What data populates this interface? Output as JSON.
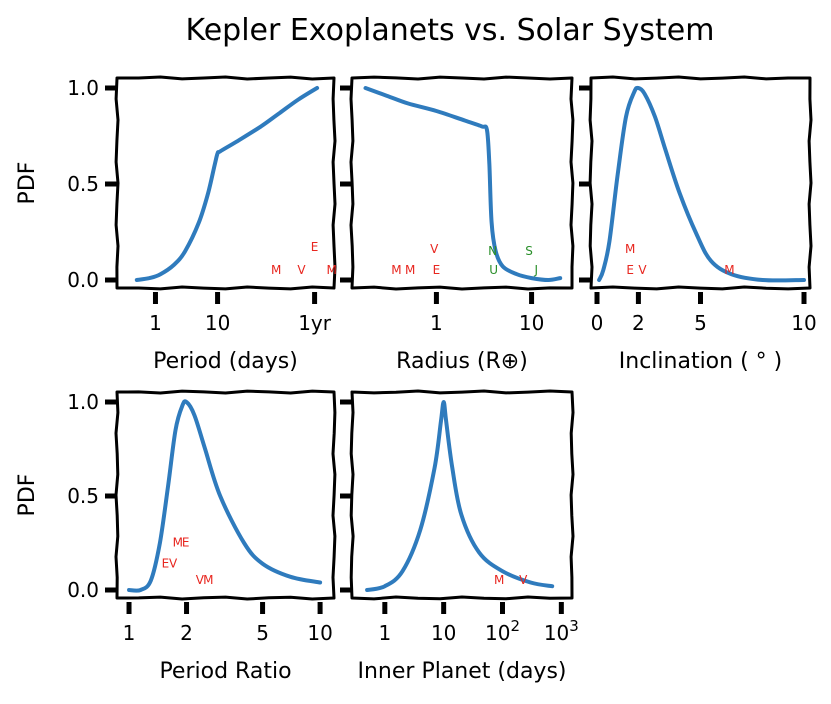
{
  "figure": {
    "title": "Kepler Exoplanets vs. Solar System"
  },
  "colors": {
    "curve": "#2f7bbd",
    "terrestrial": "#e8261f",
    "giant": "#2a8f2a"
  },
  "chart_data": [
    {
      "id": "period",
      "type": "line",
      "xlabel": "Period (days)",
      "ylabel": "PDF",
      "xscale": "log",
      "xlim": [
        0.3,
        600
      ],
      "ylim": [
        0,
        1.0
      ],
      "xticks": [
        {
          "v": 1,
          "label": "1"
        },
        {
          "v": 10,
          "label": "10"
        },
        {
          "v": 365,
          "label": "1yr"
        }
      ],
      "yticks": [
        {
          "v": 0.0,
          "label": "0.0"
        },
        {
          "v": 0.5,
          "label": "0.5"
        },
        {
          "v": 1.0,
          "label": "1.0"
        }
      ],
      "x": [
        0.5,
        0.8,
        1.2,
        2,
        3,
        5,
        7,
        9,
        10,
        11,
        20,
        50,
        100,
        200,
        400
      ],
      "y": [
        0.0,
        0.01,
        0.03,
        0.08,
        0.15,
        0.3,
        0.45,
        0.6,
        0.66,
        0.67,
        0.72,
        0.8,
        0.87,
        0.94,
        1.0
      ],
      "markers": [
        {
          "label": "M",
          "x": 88,
          "y": 0.02,
          "group": "terrestrial"
        },
        {
          "label": "V",
          "x": 225,
          "y": 0.02,
          "group": "terrestrial"
        },
        {
          "label": "E",
          "x": 365,
          "y": 0.14,
          "group": "terrestrial"
        },
        {
          "label": "M",
          "x": 687,
          "y": 0.02,
          "group": "terrestrial"
        }
      ]
    },
    {
      "id": "radius",
      "type": "line",
      "xlabel": "Radius (R⊕)",
      "ylabel": "",
      "xscale": "log",
      "xlim": [
        0.15,
        23
      ],
      "ylim": [
        0,
        1.0
      ],
      "xticks": [
        {
          "v": 1,
          "label": "1"
        },
        {
          "v": 10,
          "label": "10"
        }
      ],
      "yticks": [
        {
          "v": 0.0,
          "label": ""
        },
        {
          "v": 0.5,
          "label": ""
        },
        {
          "v": 1.0,
          "label": ""
        }
      ],
      "x": [
        0.18,
        0.3,
        0.5,
        1,
        2,
        3,
        3.4,
        3.6,
        3.8,
        4.2,
        5,
        7,
        10,
        15,
        20
      ],
      "y": [
        1.0,
        0.96,
        0.92,
        0.88,
        0.83,
        0.8,
        0.78,
        0.6,
        0.3,
        0.15,
        0.07,
        0.03,
        0.01,
        0.0,
        0.01
      ],
      "markers": [
        {
          "label": "M",
          "x": 0.38,
          "y": 0.02,
          "group": "terrestrial"
        },
        {
          "label": "M",
          "x": 0.53,
          "y": 0.02,
          "group": "terrestrial"
        },
        {
          "label": "V",
          "x": 0.95,
          "y": 0.13,
          "group": "terrestrial"
        },
        {
          "label": "E",
          "x": 1.0,
          "y": 0.02,
          "group": "terrestrial"
        },
        {
          "label": "N",
          "x": 3.9,
          "y": 0.12,
          "group": "giant"
        },
        {
          "label": "U",
          "x": 4.0,
          "y": 0.02,
          "group": "giant"
        },
        {
          "label": "S",
          "x": 9.4,
          "y": 0.12,
          "group": "giant"
        },
        {
          "label": "J",
          "x": 11.2,
          "y": 0.02,
          "group": "giant"
        }
      ]
    },
    {
      "id": "inclination",
      "type": "line",
      "xlabel": "Inclination ( ° )",
      "ylabel": "",
      "xscale": "linear",
      "xlim": [
        0,
        10
      ],
      "ylim": [
        0,
        1.0
      ],
      "xticks": [
        {
          "v": 0,
          "label": "0"
        },
        {
          "v": 2,
          "label": "2"
        },
        {
          "v": 5,
          "label": "5"
        },
        {
          "v": 10,
          "label": "10"
        }
      ],
      "yticks": [
        {
          "v": 0.0,
          "label": ""
        },
        {
          "v": 0.5,
          "label": ""
        },
        {
          "v": 1.0,
          "label": ""
        }
      ],
      "x": [
        0.1,
        0.3,
        0.6,
        1.0,
        1.4,
        1.8,
        2.0,
        2.3,
        2.8,
        3.3,
        4.0,
        4.8,
        5.5,
        6.5,
        8,
        10
      ],
      "y": [
        0.0,
        0.05,
        0.2,
        0.55,
        0.85,
        0.98,
        1.0,
        0.97,
        0.85,
        0.68,
        0.45,
        0.24,
        0.1,
        0.03,
        0.0,
        0.0
      ],
      "markers": [
        {
          "label": "M",
          "x": 1.6,
          "y": 0.13,
          "group": "terrestrial"
        },
        {
          "label": "E",
          "x": 1.6,
          "y": 0.02,
          "group": "terrestrial"
        },
        {
          "label": "V",
          "x": 2.2,
          "y": 0.02,
          "group": "terrestrial"
        },
        {
          "label": "M",
          "x": 6.4,
          "y": 0.02,
          "group": "terrestrial"
        }
      ]
    },
    {
      "id": "period-ratio",
      "type": "line",
      "xlabel": "Period Ratio",
      "ylabel": "PDF",
      "xscale": "log",
      "xlim": [
        0.93,
        11
      ],
      "ylim": [
        0,
        1.0
      ],
      "xticks": [
        {
          "v": 1,
          "label": "1"
        },
        {
          "v": 2,
          "label": "2"
        },
        {
          "v": 5,
          "label": "5"
        },
        {
          "v": 10,
          "label": "10"
        }
      ],
      "yticks": [
        {
          "v": 0.0,
          "label": "0.0"
        },
        {
          "v": 0.5,
          "label": "0.5"
        },
        {
          "v": 1.0,
          "label": "1.0"
        }
      ],
      "x": [
        1.0,
        1.15,
        1.3,
        1.45,
        1.6,
        1.75,
        1.9,
        2.0,
        2.2,
        2.5,
        3.0,
        4.0,
        5.0,
        7.0,
        10.0
      ],
      "y": [
        0.0,
        0.0,
        0.05,
        0.25,
        0.55,
        0.85,
        0.98,
        1.0,
        0.93,
        0.75,
        0.5,
        0.25,
        0.14,
        0.07,
        0.04
      ],
      "markers": [
        {
          "label": "E",
          "x": 1.55,
          "y": 0.11,
          "group": "terrestrial"
        },
        {
          "label": "V",
          "x": 1.7,
          "y": 0.11,
          "group": "terrestrial"
        },
        {
          "label": "M",
          "x": 1.8,
          "y": 0.22,
          "group": "terrestrial"
        },
        {
          "label": "E",
          "x": 1.98,
          "y": 0.22,
          "group": "terrestrial"
        },
        {
          "label": "V",
          "x": 2.35,
          "y": 0.02,
          "group": "terrestrial"
        },
        {
          "label": "M",
          "x": 2.6,
          "y": 0.02,
          "group": "terrestrial"
        }
      ]
    },
    {
      "id": "inner-planet",
      "type": "line",
      "xlabel": "Inner Planet (days)",
      "ylabel": "",
      "xscale": "log",
      "xlim": [
        0.35,
        1200
      ],
      "ylim": [
        0,
        1.0
      ],
      "xticks": [
        {
          "v": 1,
          "label": "1"
        },
        {
          "v": 10,
          "label": "10"
        },
        {
          "v": 100,
          "label": "10",
          "sup": "2"
        },
        {
          "v": 1000,
          "label": "10",
          "sup": "3"
        }
      ],
      "yticks": [
        {
          "v": 0.0,
          "label": ""
        },
        {
          "v": 0.5,
          "label": ""
        },
        {
          "v": 1.0,
          "label": ""
        }
      ],
      "x": [
        0.5,
        1,
        2,
        4,
        7,
        9,
        10,
        11,
        14,
        20,
        40,
        100,
        300,
        700
      ],
      "y": [
        0.0,
        0.02,
        0.1,
        0.32,
        0.65,
        0.9,
        1.0,
        0.9,
        0.65,
        0.4,
        0.2,
        0.1,
        0.04,
        0.02
      ],
      "markers": [
        {
          "label": "M",
          "x": 88,
          "y": 0.02,
          "group": "terrestrial"
        },
        {
          "label": "V",
          "x": 225,
          "y": 0.02,
          "group": "terrestrial"
        }
      ]
    }
  ]
}
